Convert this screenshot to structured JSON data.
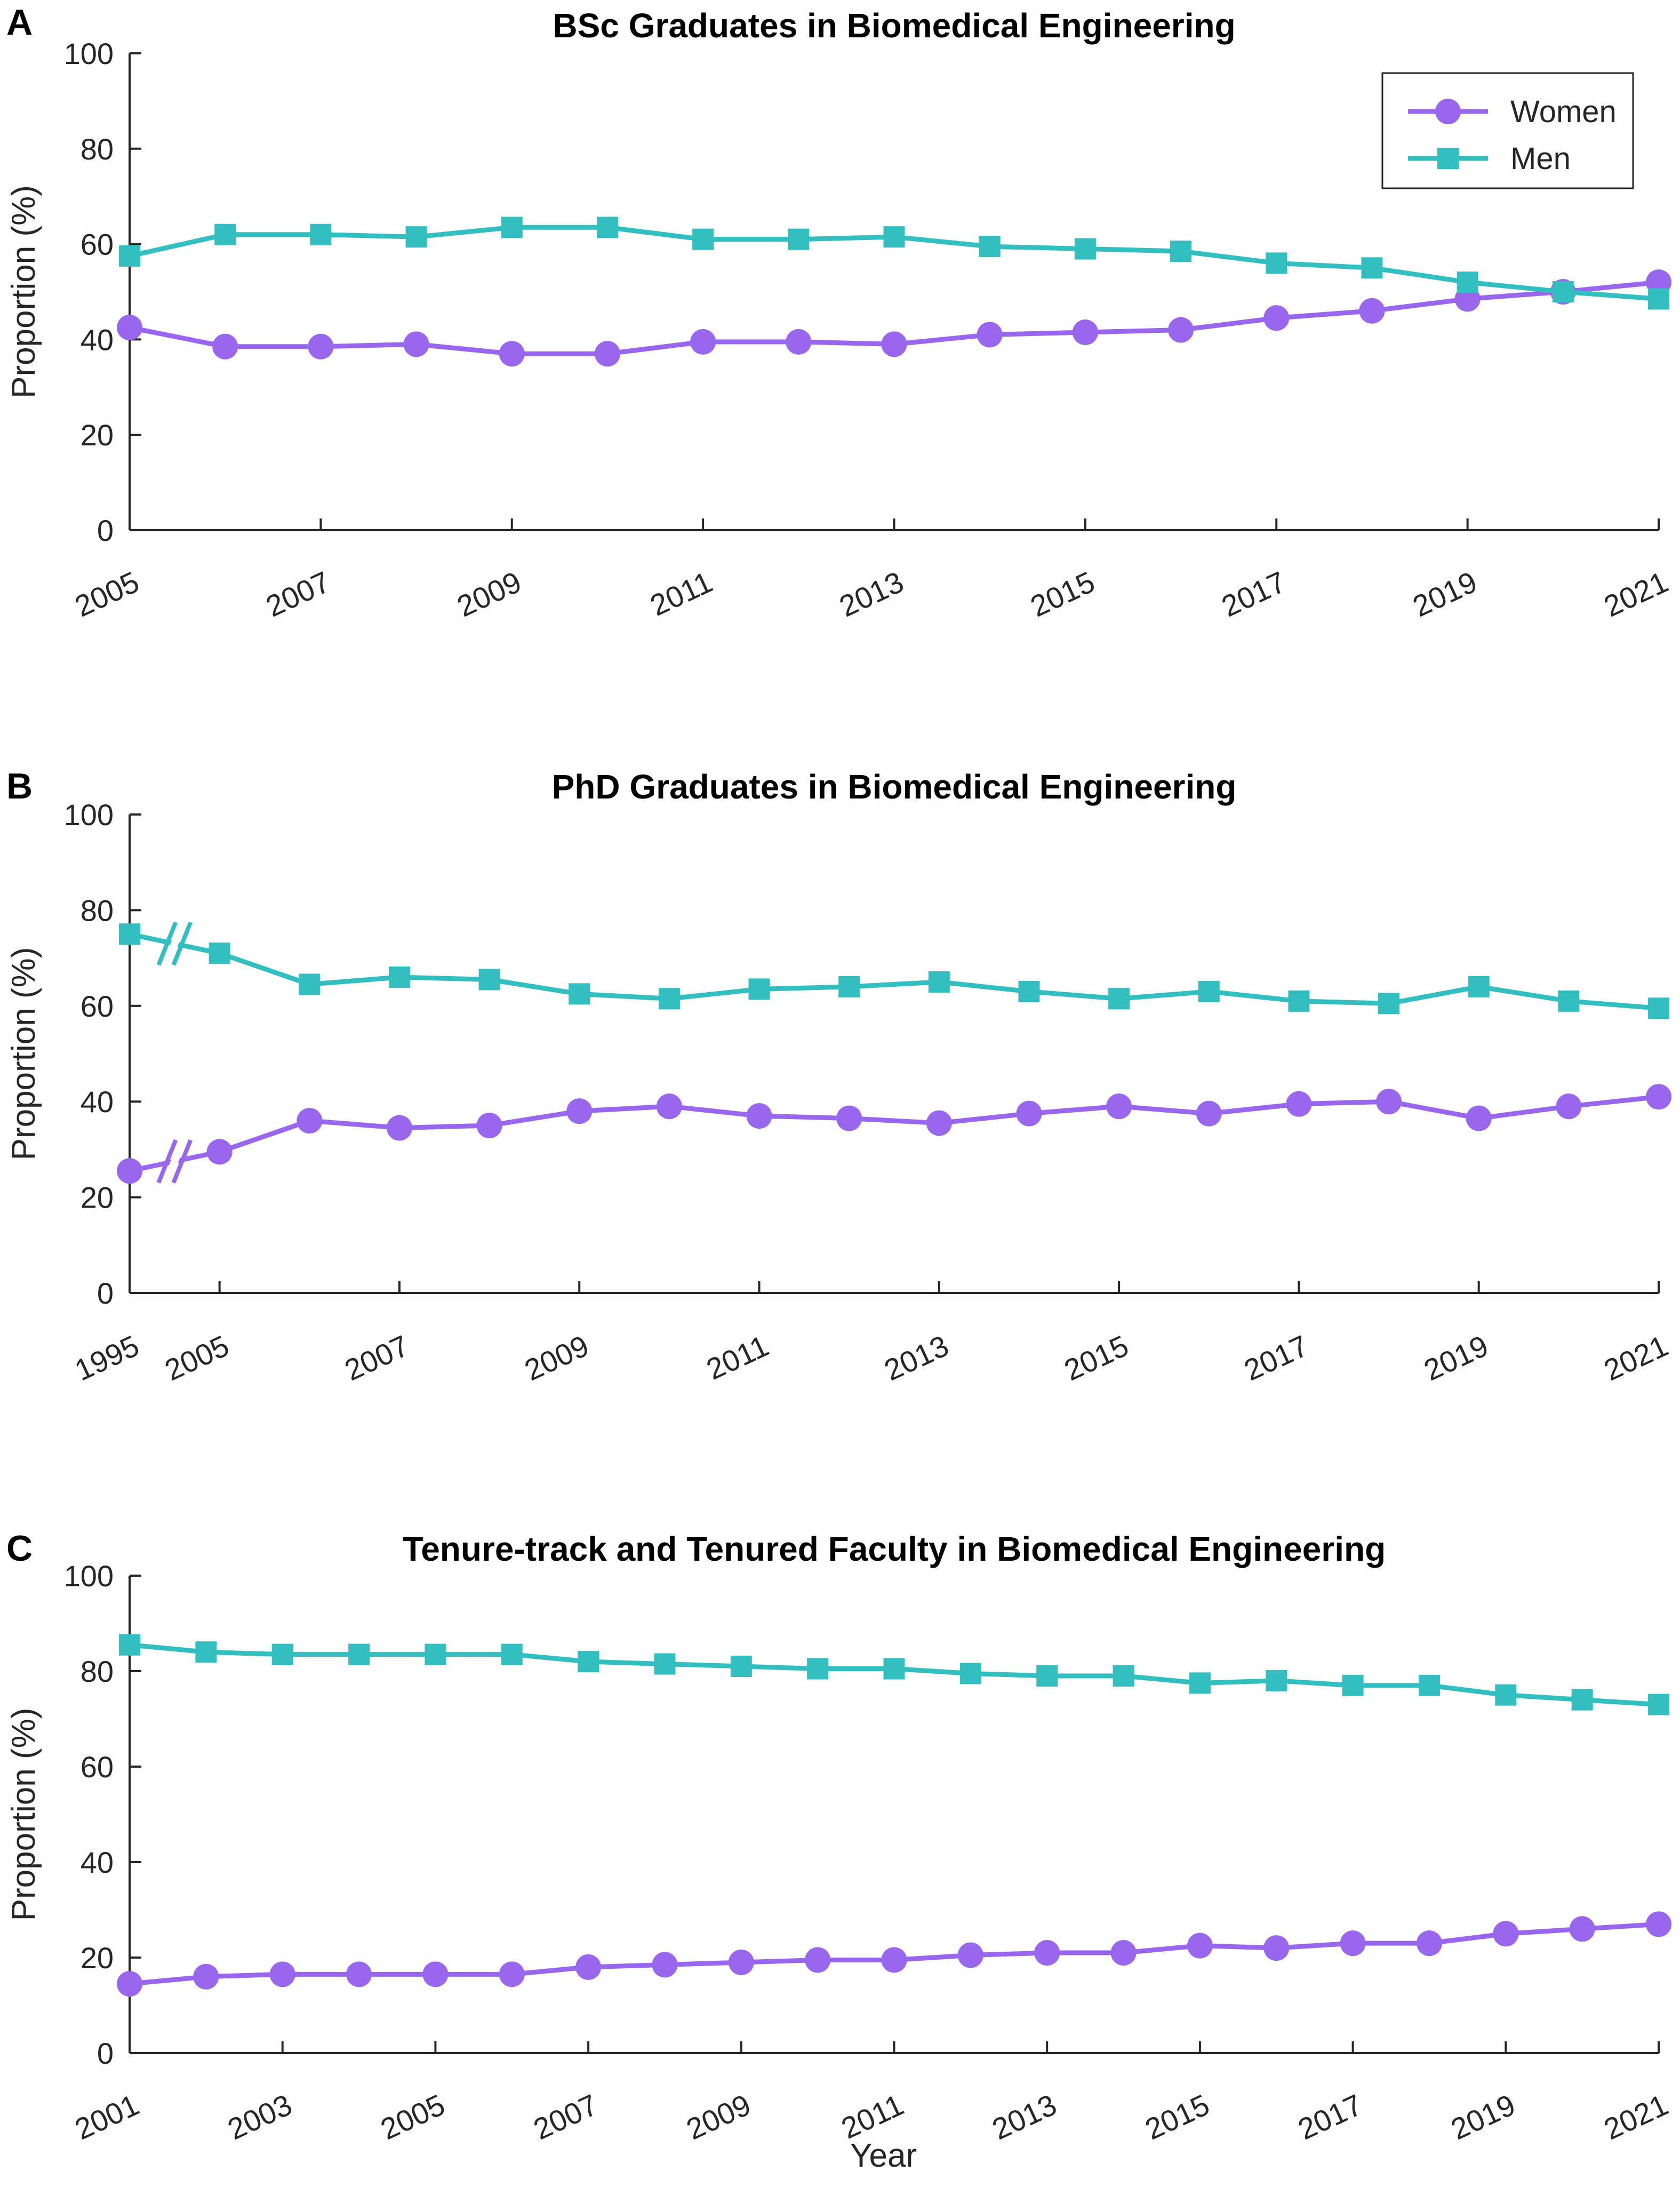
{
  "colors": {
    "women": "#9966EE",
    "men": "#33BFBF",
    "axis": "#262626"
  },
  "legend": {
    "women": "Women",
    "men": "Men",
    "location": "top-right of panel A"
  },
  "chart_data": [
    {
      "panel": "A",
      "type": "line",
      "title": "BSc Graduates in Biomedical Engineering",
      "xlabel": "",
      "ylabel": "Proportion (%)",
      "ylim": [
        0,
        100
      ],
      "yticks": [
        0,
        20,
        40,
        60,
        80,
        100
      ],
      "x": [
        2005,
        2006,
        2007,
        2008,
        2009,
        2010,
        2011,
        2012,
        2013,
        2014,
        2015,
        2016,
        2017,
        2018,
        2019,
        2020,
        2021
      ],
      "xticklabels": [
        "2005",
        "2007",
        "2009",
        "2011",
        "2013",
        "2015",
        "2017",
        "2019",
        "2021"
      ],
      "series": [
        {
          "name": "Women",
          "values": [
            42.5,
            38.5,
            38.5,
            39,
            37,
            37,
            39.5,
            39.5,
            39,
            41,
            41.5,
            42,
            44.5,
            46,
            48.5,
            50,
            52
          ]
        },
        {
          "name": "Men",
          "values": [
            57.5,
            62,
            62,
            61.5,
            63.5,
            63.5,
            61,
            61,
            61.5,
            59.5,
            59,
            58.5,
            56,
            55,
            52,
            50,
            48.5
          ]
        }
      ]
    },
    {
      "panel": "B",
      "type": "line",
      "title": "PhD Graduates in Biomedical Engineering",
      "xlabel": "",
      "ylabel": "Proportion (%)",
      "ylim": [
        0,
        100
      ],
      "yticks": [
        0,
        20,
        40,
        60,
        80,
        100
      ],
      "x": [
        1995,
        2005,
        2006,
        2007,
        2008,
        2009,
        2010,
        2011,
        2012,
        2013,
        2014,
        2015,
        2016,
        2017,
        2018,
        2019,
        2020,
        2021
      ],
      "x_axis_break": "between 1995 and 2005",
      "xticklabels": [
        "1995",
        "2005",
        "2007",
        "2009",
        "2011",
        "2013",
        "2015",
        "2017",
        "2019",
        "2021"
      ],
      "series": [
        {
          "name": "Women",
          "values": [
            25.5,
            29.5,
            36,
            34.5,
            35,
            38,
            39,
            37,
            36.5,
            35.5,
            37.5,
            39,
            37.5,
            39.5,
            40,
            36.5,
            39,
            41
          ]
        },
        {
          "name": "Men",
          "values": [
            75,
            71,
            64.5,
            66,
            65.5,
            62.5,
            61.5,
            63.5,
            64,
            65,
            63,
            61.5,
            63,
            61,
            60.5,
            64,
            61,
            59.5
          ]
        }
      ]
    },
    {
      "panel": "C",
      "type": "line",
      "title": "Tenure-track and Tenured Faculty in Biomedical Engineering",
      "xlabel": "Year",
      "ylabel": "Proportion (%)",
      "ylim": [
        0,
        100
      ],
      "yticks": [
        0,
        20,
        40,
        60,
        80,
        100
      ],
      "x": [
        2001,
        2002,
        2003,
        2004,
        2005,
        2006,
        2007,
        2008,
        2009,
        2010,
        2011,
        2012,
        2013,
        2014,
        2015,
        2016,
        2017,
        2018,
        2019,
        2020,
        2021
      ],
      "xticklabels": [
        "2001",
        "2003",
        "2005",
        "2007",
        "2009",
        "2011",
        "2013",
        "2015",
        "2017",
        "2019",
        "2021"
      ],
      "series": [
        {
          "name": "Women",
          "values": [
            14.5,
            16,
            16.5,
            16.5,
            16.5,
            16.5,
            18,
            18.5,
            19,
            19.5,
            19.5,
            20.5,
            21,
            21,
            22.5,
            22,
            23,
            23,
            25,
            26,
            27
          ]
        },
        {
          "name": "Men",
          "values": [
            85.5,
            84,
            83.5,
            83.5,
            83.5,
            83.5,
            82,
            81.5,
            81,
            80.5,
            80.5,
            79.5,
            79,
            79,
            77.5,
            78,
            77,
            77,
            75,
            74,
            73
          ]
        }
      ]
    }
  ]
}
